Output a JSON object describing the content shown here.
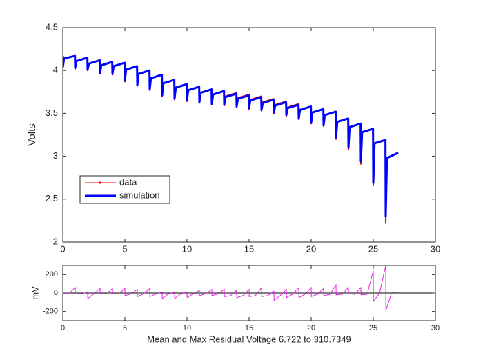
{
  "chart_data": [
    {
      "type": "line",
      "ylabel": "Volts",
      "legend": "southwest",
      "xlim": [
        0,
        30
      ],
      "xticks": [
        0,
        5,
        10,
        15,
        20,
        25,
        30
      ],
      "ylim": [
        2,
        4.5
      ],
      "yticks": [
        2,
        2.5,
        3,
        3.5,
        4,
        4.5
      ],
      "x": [
        0,
        0.02,
        0.1,
        0.98,
        1,
        1.1,
        1.98,
        2,
        2.1,
        2.98,
        3,
        3.1,
        3.98,
        4,
        4.1,
        4.98,
        5,
        5.1,
        5.98,
        6,
        6.1,
        6.98,
        7,
        7.1,
        7.98,
        8,
        8.1,
        8.98,
        9,
        9.1,
        9.98,
        10,
        10.1,
        10.98,
        11,
        11.1,
        11.98,
        12,
        12.1,
        12.98,
        13,
        13.1,
        13.98,
        14,
        14.1,
        14.98,
        15,
        15.1,
        15.98,
        16,
        16.1,
        16.98,
        17,
        17.1,
        17.98,
        18,
        18.1,
        18.98,
        19,
        19.1,
        19.98,
        20,
        20.1,
        20.98,
        21,
        21.1,
        21.98,
        22,
        22.1,
        22.98,
        23,
        23.1,
        23.98,
        24,
        24.1,
        24.98,
        25,
        25.1,
        25.98,
        26,
        26.1,
        27
      ],
      "series": [
        {
          "name": "data",
          "color": "#ff0000",
          "marker": true,
          "values": [
            4.2,
            4.03,
            4.14,
            4.17,
            4.02,
            4.11,
            4.15,
            4.0,
            4.08,
            4.12,
            3.96,
            4.06,
            4.1,
            3.95,
            4.05,
            4.09,
            3.87,
            4.01,
            4.05,
            3.82,
            3.96,
            4.0,
            3.77,
            3.91,
            3.95,
            3.7,
            3.85,
            3.89,
            3.66,
            3.8,
            3.84,
            3.64,
            3.77,
            3.81,
            3.62,
            3.74,
            3.78,
            3.6,
            3.72,
            3.76,
            3.59,
            3.7,
            3.74,
            3.57,
            3.68,
            3.72,
            3.55,
            3.66,
            3.7,
            3.53,
            3.63,
            3.67,
            3.5,
            3.6,
            3.64,
            3.47,
            3.57,
            3.61,
            3.43,
            3.54,
            3.58,
            3.38,
            3.51,
            3.55,
            3.35,
            3.48,
            3.52,
            3.2,
            3.4,
            3.44,
            3.08,
            3.34,
            3.38,
            2.91,
            3.28,
            3.32,
            2.66,
            3.15,
            3.19,
            2.22,
            2.98,
            3.04
          ]
        },
        {
          "name": "simulation",
          "color": "#0000ff",
          "marker": false,
          "values": [
            4.17,
            4.05,
            4.14,
            4.17,
            4.03,
            4.11,
            4.15,
            4.01,
            4.08,
            4.12,
            3.97,
            4.06,
            4.1,
            3.96,
            4.05,
            4.09,
            3.88,
            4.01,
            4.05,
            3.83,
            3.96,
            4.0,
            3.78,
            3.91,
            3.95,
            3.71,
            3.85,
            3.89,
            3.67,
            3.8,
            3.84,
            3.65,
            3.77,
            3.81,
            3.63,
            3.74,
            3.78,
            3.61,
            3.72,
            3.76,
            3.6,
            3.69,
            3.73,
            3.58,
            3.67,
            3.71,
            3.56,
            3.65,
            3.69,
            3.54,
            3.62,
            3.66,
            3.51,
            3.59,
            3.63,
            3.48,
            3.56,
            3.6,
            3.44,
            3.54,
            3.58,
            3.39,
            3.51,
            3.55,
            3.36,
            3.48,
            3.52,
            3.22,
            3.4,
            3.44,
            3.1,
            3.34,
            3.38,
            2.94,
            3.28,
            3.32,
            2.69,
            3.15,
            3.19,
            2.3,
            2.98,
            3.04
          ]
        }
      ]
    },
    {
      "type": "line",
      "ylabel": "mV",
      "xlabel": "Mean and Max Residual Voltage 6.722 to 310.7349",
      "xlim": [
        0,
        30
      ],
      "xticks": [
        0,
        5,
        10,
        15,
        20,
        25,
        30
      ],
      "ylim": [
        -300,
        300
      ],
      "yticks": [
        -200,
        0,
        200
      ],
      "color": "#e61ee6",
      "x": [
        0,
        0.5,
        1,
        1.01,
        1.5,
        2,
        2.01,
        2.5,
        3,
        3.01,
        3.5,
        4,
        4.01,
        4.5,
        5,
        5.01,
        5.5,
        6,
        6.01,
        6.5,
        7,
        7.01,
        7.5,
        8,
        8.01,
        8.5,
        9,
        9.01,
        9.5,
        10,
        10.01,
        10.5,
        11,
        11.01,
        11.5,
        12,
        12.01,
        12.5,
        13,
        13.01,
        13.5,
        14,
        14.01,
        14.5,
        15,
        15.01,
        15.5,
        16,
        16.01,
        16.5,
        17,
        17.01,
        17.5,
        18,
        18.01,
        18.5,
        19,
        19.01,
        19.5,
        20,
        20.01,
        20.5,
        21,
        21.01,
        21.5,
        22,
        22.01,
        22.5,
        23,
        23.01,
        23.5,
        24,
        24.01,
        24.5,
        25,
        25.01,
        25.5,
        26,
        26.01,
        26.5,
        27
      ],
      "values": [
        0,
        -5,
        60,
        -10,
        -10,
        10,
        -60,
        -10,
        50,
        -10,
        -10,
        50,
        -10,
        -10,
        50,
        -30,
        -10,
        40,
        -40,
        -10,
        50,
        -40,
        -10,
        10,
        -60,
        -10,
        10,
        -60,
        -10,
        10,
        -50,
        -10,
        30,
        -30,
        -10,
        40,
        -30,
        -10,
        40,
        -40,
        -30,
        30,
        -50,
        -30,
        40,
        -40,
        -30,
        60,
        -40,
        -30,
        20,
        -80,
        -30,
        40,
        -50,
        -15,
        60,
        -50,
        -15,
        60,
        -40,
        -15,
        50,
        -30,
        -15,
        90,
        -20,
        -15,
        60,
        -10,
        -15,
        60,
        -20,
        -15,
        240,
        -90,
        -5,
        300,
        -190,
        10,
        10
      ]
    }
  ]
}
